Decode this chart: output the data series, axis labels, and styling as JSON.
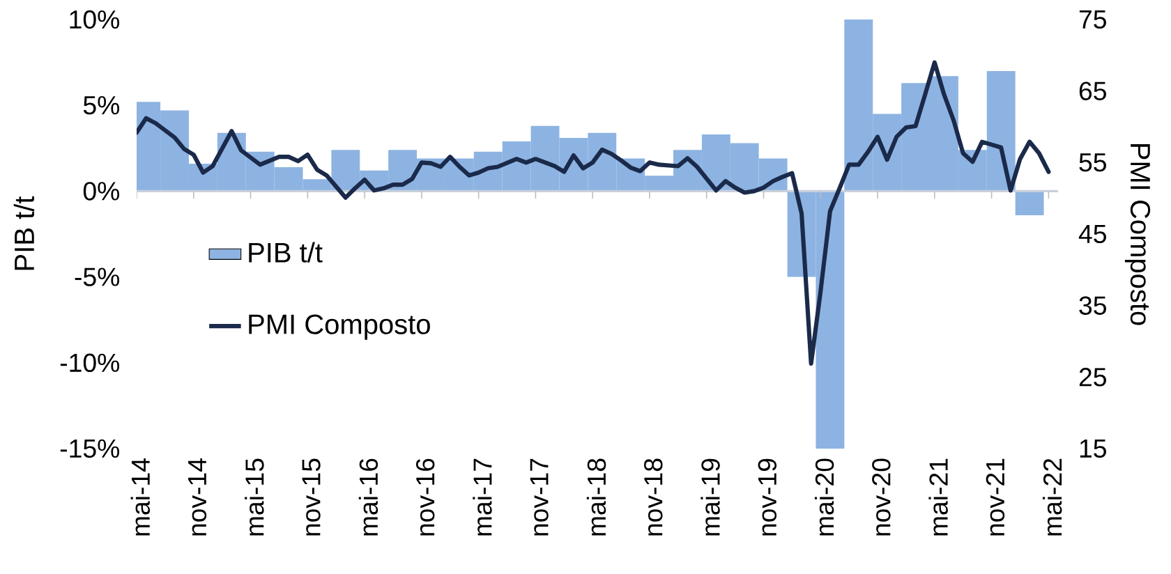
{
  "chart_data": {
    "type": "bar",
    "ylabel": "PIB  t/t",
    "y2label": "PMI Composto",
    "xlim": [
      "2014-05",
      "2022-06"
    ],
    "xticks": [
      {
        "value": "2014-05",
        "label": "mai-14"
      },
      {
        "value": "2014-11",
        "label": "nov-14"
      },
      {
        "value": "2015-05",
        "label": "mai-15"
      },
      {
        "value": "2015-11",
        "label": "nov-15"
      },
      {
        "value": "2016-05",
        "label": "mai-16"
      },
      {
        "value": "2016-11",
        "label": "nov-16"
      },
      {
        "value": "2017-05",
        "label": "mai-17"
      },
      {
        "value": "2017-11",
        "label": "nov-17"
      },
      {
        "value": "2018-05",
        "label": "mai-18"
      },
      {
        "value": "2018-11",
        "label": "nov-18"
      },
      {
        "value": "2019-05",
        "label": "mai-19"
      },
      {
        "value": "2019-11",
        "label": "nov-19"
      },
      {
        "value": "2020-05",
        "label": "mai-20"
      },
      {
        "value": "2020-11",
        "label": "nov-20"
      },
      {
        "value": "2021-05",
        "label": "mai-21"
      },
      {
        "value": "2021-11",
        "label": "nov-21"
      },
      {
        "value": "2022-05",
        "label": "mai-22"
      }
    ],
    "ylim": [
      -15,
      10
    ],
    "yticks": [
      {
        "value": -15,
        "label": "-15%"
      },
      {
        "value": -10,
        "label": "-10%"
      },
      {
        "value": -5,
        "label": "-5%"
      },
      {
        "value": 0,
        "label": "0%"
      },
      {
        "value": 5,
        "label": "5%"
      },
      {
        "value": 10,
        "label": "10%"
      }
    ],
    "y2lim": [
      15,
      75
    ],
    "y2ticks": [
      15,
      25,
      35,
      45,
      55,
      65,
      75
    ],
    "legend": "bottom left",
    "series": [
      {
        "name": "PIB t/t",
        "color": "#8db3e2",
        "x": [
          "2014-06",
          "2014-09",
          "2014-12",
          "2015-03",
          "2015-06",
          "2015-09",
          "2015-12",
          "2016-03",
          "2016-06",
          "2016-09",
          "2016-12",
          "2017-03",
          "2017-06",
          "2017-09",
          "2017-12",
          "2018-03",
          "2018-06",
          "2018-09",
          "2018-12",
          "2019-03",
          "2019-06",
          "2019-09",
          "2019-12",
          "2020-03",
          "2020-06",
          "2020-09",
          "2020-12",
          "2021-03",
          "2021-06",
          "2021-09",
          "2021-12",
          "2022-03"
        ],
        "values": [
          5.2,
          4.7,
          1.6,
          3.4,
          2.3,
          1.4,
          0.7,
          2.4,
          1.2,
          2.4,
          1.9,
          1.9,
          2.3,
          2.9,
          3.8,
          3.1,
          3.4,
          1.9,
          0.9,
          2.4,
          3.3,
          2.8,
          1.9,
          -5.0,
          -15.0,
          10.0,
          4.5,
          6.3,
          6.7,
          2.4,
          7.0,
          -1.4
        ]
      },
      {
        "name": "PMI Composto",
        "type": "line",
        "axis": "y2",
        "color": "#1b2a4a",
        "x": [
          "2014-05",
          "2014-06",
          "2014-07",
          "2014-08",
          "2014-09",
          "2014-10",
          "2014-11",
          "2014-12",
          "2015-01",
          "2015-03",
          "2015-04",
          "2015-06",
          "2015-08",
          "2015-09",
          "2015-10",
          "2015-11",
          "2015-12",
          "2016-01",
          "2016-03",
          "2016-04",
          "2016-05",
          "2016-06",
          "2016-07",
          "2016-08",
          "2016-09",
          "2016-10",
          "2016-11",
          "2016-12",
          "2017-01",
          "2017-02",
          "2017-03",
          "2017-04",
          "2017-05",
          "2017-06",
          "2017-07",
          "2017-09",
          "2017-10",
          "2017-11",
          "2018-01",
          "2018-02",
          "2018-03",
          "2018-04",
          "2018-05",
          "2018-06",
          "2018-07",
          "2018-08",
          "2018-09",
          "2018-10",
          "2018-11",
          "2018-12",
          "2019-01",
          "2019-02",
          "2019-03",
          "2019-04",
          "2019-06",
          "2019-07",
          "2019-08",
          "2019-09",
          "2019-10",
          "2019-11",
          "2019-12",
          "2020-01",
          "2020-02",
          "2020-03",
          "2020-04",
          "2020-05",
          "2020-06",
          "2020-07",
          "2020-08",
          "2020-09",
          "2020-10",
          "2020-11",
          "2020-12",
          "2021-01",
          "2021-02",
          "2021-03",
          "2021-04",
          "2021-05",
          "2021-06",
          "2021-07",
          "2021-08",
          "2021-09",
          "2021-10",
          "2021-11",
          "2021-12",
          "2022-01",
          "2022-02",
          "2022-03",
          "2022-04",
          "2022-05"
        ],
        "values": [
          59.2,
          61.2,
          60.5,
          59.5,
          58.5,
          56.9,
          56.1,
          53.6,
          54.5,
          59.4,
          56.7,
          54.7,
          55.8,
          55.8,
          55.2,
          56.1,
          54.0,
          53.2,
          50.1,
          51.4,
          52.6,
          51.1,
          51.4,
          51.9,
          51.9,
          52.7,
          55.0,
          54.9,
          54.4,
          55.8,
          54.4,
          53.2,
          53.6,
          54.2,
          54.4,
          55.5,
          55.0,
          55.5,
          54.5,
          53.7,
          56.0,
          54.2,
          55.0,
          56.8,
          56.2,
          55.3,
          54.3,
          53.8,
          55.0,
          54.7,
          54.6,
          54.5,
          55.6,
          54.4,
          51.1,
          52.4,
          51.5,
          50.8,
          51.0,
          51.5,
          52.4,
          53.0,
          53.5,
          47.9,
          26.9,
          37.0,
          48.2,
          51.4,
          54.7,
          54.7,
          56.5,
          58.6,
          55.4,
          58.6,
          59.9,
          60.1,
          64.5,
          69.0,
          64.5,
          60.9,
          56.3,
          55.1,
          57.9,
          57.5,
          57.1,
          51.1,
          55.5,
          57.9,
          56.3,
          53.7
        ]
      }
    ]
  }
}
